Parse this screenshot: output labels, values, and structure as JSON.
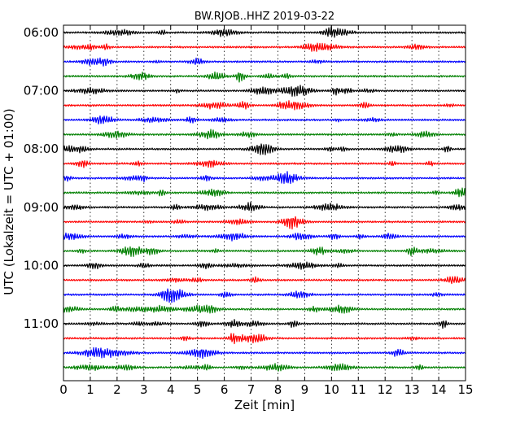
{
  "chart_data": {
    "type": "line",
    "title": "BW.RJOB..HHZ 2019-03-22",
    "xlabel": "Zeit  [min]",
    "ylabel": "UTC (Lokalzeit = UTC + 01:00)",
    "xlim": [
      0,
      15
    ],
    "x_ticks": [
      "0",
      "1",
      "2",
      "3",
      "4",
      "5",
      "6",
      "7",
      "8",
      "9",
      "10",
      "11",
      "12",
      "13",
      "14",
      "15"
    ],
    "y_ticks": [
      "06:00",
      "07:00",
      "08:00",
      "09:00",
      "10:00",
      "11:00"
    ],
    "grid_x": true,
    "trace_colors": [
      "#000000",
      "#ff0000",
      "#0000ff",
      "#008000"
    ],
    "rows": [
      {
        "start": "06:00",
        "color": "#000000"
      },
      {
        "start": "06:15",
        "color": "#ff0000"
      },
      {
        "start": "06:30",
        "color": "#0000ff"
      },
      {
        "start": "06:45",
        "color": "#008000"
      },
      {
        "start": "07:00",
        "color": "#000000"
      },
      {
        "start": "07:15",
        "color": "#ff0000"
      },
      {
        "start": "07:30",
        "color": "#0000ff"
      },
      {
        "start": "07:45",
        "color": "#008000"
      },
      {
        "start": "08:00",
        "color": "#000000"
      },
      {
        "start": "08:15",
        "color": "#ff0000"
      },
      {
        "start": "08:30",
        "color": "#0000ff"
      },
      {
        "start": "08:45",
        "color": "#008000"
      },
      {
        "start": "09:00",
        "color": "#000000"
      },
      {
        "start": "09:15",
        "color": "#ff0000"
      },
      {
        "start": "09:30",
        "color": "#0000ff"
      },
      {
        "start": "09:45",
        "color": "#008000"
      },
      {
        "start": "10:00",
        "color": "#000000"
      },
      {
        "start": "10:15",
        "color": "#ff0000"
      },
      {
        "start": "10:30",
        "color": "#0000ff"
      },
      {
        "start": "10:45",
        "color": "#008000"
      },
      {
        "start": "11:00",
        "color": "#000000"
      },
      {
        "start": "11:15",
        "color": "#ff0000"
      },
      {
        "start": "11:30",
        "color": "#0000ff"
      },
      {
        "start": "11:45",
        "color": "#008000"
      }
    ]
  }
}
